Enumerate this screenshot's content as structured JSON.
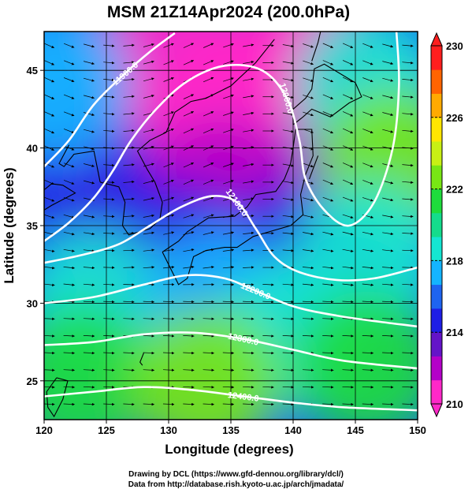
{
  "chart_data": {
    "type": "heatmap",
    "title": "MSM 21Z14Apr2024 (200.0hPa)",
    "xlabel": "Longitude (degrees)",
    "ylabel": "Latitude  (degrees)",
    "xlim": [
      120,
      150
    ],
    "ylim": [
      22.5,
      47.5
    ],
    "xticks": [
      "120",
      "125",
      "130",
      "135",
      "140",
      "145",
      "150"
    ],
    "yticks": [
      "25",
      "30",
      "35",
      "40",
      "45"
    ],
    "xtick_values": [
      120,
      125,
      130,
      135,
      140,
      145,
      150
    ],
    "ytick_values": [
      25,
      30,
      35,
      40,
      45
    ],
    "colorbar": {
      "min": 210,
      "max": 230,
      "ticks": [
        "210",
        "214",
        "218",
        "222",
        "226",
        "230"
      ],
      "tick_values": [
        210,
        214,
        218,
        222,
        226,
        230
      ],
      "colors": [
        "#ff28c8",
        "#b400c8",
        "#6414c8",
        "#1e1ee6",
        "#1e64f0",
        "#14b4ff",
        "#14e6d2",
        "#14dc8c",
        "#1edc3c",
        "#78e614",
        "#c8f014",
        "#ffe600",
        "#ffaa00",
        "#ff6400",
        "#ff1e1e"
      ]
    },
    "temperature_field": [
      {
        "lon": 130,
        "lat": 46,
        "value": 210.3
      },
      {
        "lon": 136,
        "lat": 44,
        "value": 210.2
      },
      {
        "lon": 127,
        "lat": 39,
        "value": 210.6
      },
      {
        "lon": 140,
        "lat": 46,
        "value": 210.8
      },
      {
        "lon": 128,
        "lat": 35,
        "value": 211.0
      },
      {
        "lon": 134,
        "lat": 37,
        "value": 212.0
      },
      {
        "lon": 138,
        "lat": 36,
        "value": 212.5
      },
      {
        "lon": 123,
        "lat": 38,
        "value": 214.0
      },
      {
        "lon": 131,
        "lat": 33,
        "value": 214.5
      },
      {
        "lon": 140,
        "lat": 33,
        "value": 215.0
      },
      {
        "lon": 121,
        "lat": 44,
        "value": 217.5
      },
      {
        "lon": 146,
        "lat": 44,
        "value": 219.0
      },
      {
        "lon": 148,
        "lat": 39,
        "value": 222.5
      },
      {
        "lon": 146,
        "lat": 33,
        "value": 219.0
      },
      {
        "lon": 124,
        "lat": 30,
        "value": 218.5
      },
      {
        "lon": 134,
        "lat": 30,
        "value": 217.5
      },
      {
        "lon": 140,
        "lat": 28,
        "value": 218.5
      },
      {
        "lon": 123,
        "lat": 25,
        "value": 221.5
      },
      {
        "lon": 133,
        "lat": 25,
        "value": 222.5
      },
      {
        "lon": 146,
        "lat": 26,
        "value": 221.0
      }
    ],
    "height_contours": [
      {
        "label": "11900.0",
        "points": [
          [
            120.0,
            38.8
          ],
          [
            122.0,
            40.5
          ],
          [
            124.0,
            42.8
          ],
          [
            126.5,
            44.8
          ],
          [
            128.5,
            46.2
          ],
          [
            130.5,
            47.4
          ]
        ]
      },
      {
        "label": "12000.0",
        "points": [
          [
            120.0,
            34.0
          ],
          [
            122.0,
            35.2
          ],
          [
            124.0,
            36.8
          ],
          [
            125.5,
            38.5
          ],
          [
            127.0,
            40.5
          ],
          [
            129.0,
            42.5
          ],
          [
            131.5,
            44.3
          ],
          [
            134.5,
            45.3
          ],
          [
            137.5,
            45.0
          ],
          [
            139.5,
            43.2
          ],
          [
            140.5,
            40.5
          ],
          [
            141.0,
            38.0
          ],
          [
            142.5,
            36.0
          ],
          [
            144.5,
            35.0
          ],
          [
            146.5,
            36.5
          ],
          [
            148.0,
            40.0
          ],
          [
            148.5,
            44.0
          ],
          [
            148.3,
            47.5
          ]
        ]
      },
      {
        "label": "12100.0",
        "points": [
          [
            120.0,
            32.6
          ],
          [
            123.0,
            33.1
          ],
          [
            126.0,
            33.8
          ],
          [
            128.5,
            35.0
          ],
          [
            131.0,
            36.2
          ],
          [
            133.5,
            36.9
          ],
          [
            135.5,
            36.5
          ],
          [
            137.0,
            34.8
          ],
          [
            138.5,
            33.0
          ],
          [
            140.5,
            32.0
          ],
          [
            143.5,
            31.5
          ],
          [
            146.5,
            31.6
          ],
          [
            150.0,
            32.3
          ]
        ]
      },
      {
        "label": "12200.0",
        "points": [
          [
            120.0,
            30.0
          ],
          [
            124.0,
            30.4
          ],
          [
            128.0,
            31.2
          ],
          [
            131.5,
            31.8
          ],
          [
            134.5,
            31.6
          ],
          [
            137.0,
            30.8
          ],
          [
            140.0,
            29.8
          ],
          [
            143.5,
            29.2
          ],
          [
            147.0,
            28.8
          ],
          [
            150.0,
            28.5
          ]
        ]
      },
      {
        "label": "12300.0",
        "points": [
          [
            120.0,
            27.3
          ],
          [
            124.0,
            27.5
          ],
          [
            128.0,
            28.0
          ],
          [
            132.0,
            28.1
          ],
          [
            136.0,
            27.7
          ],
          [
            140.0,
            27.0
          ],
          [
            144.0,
            26.3
          ],
          [
            150.0,
            25.8
          ]
        ]
      },
      {
        "label": "12400.0",
        "points": [
          [
            120.0,
            24.0
          ],
          [
            124.0,
            24.3
          ],
          [
            128.0,
            24.6
          ],
          [
            132.0,
            24.4
          ],
          [
            136.0,
            24.0
          ],
          [
            140.0,
            23.6
          ],
          [
            144.0,
            23.3
          ],
          [
            150.0,
            23.1
          ]
        ]
      }
    ],
    "wind_field_note": "",
    "grid": true
  },
  "credits": {
    "drawing": "Drawing by DCL (https://www.gfd-dennou.org/library/dcl/)",
    "data": "Data from http://database.rish.kyoto-u.ac.jp/arch/jmadata/"
  }
}
